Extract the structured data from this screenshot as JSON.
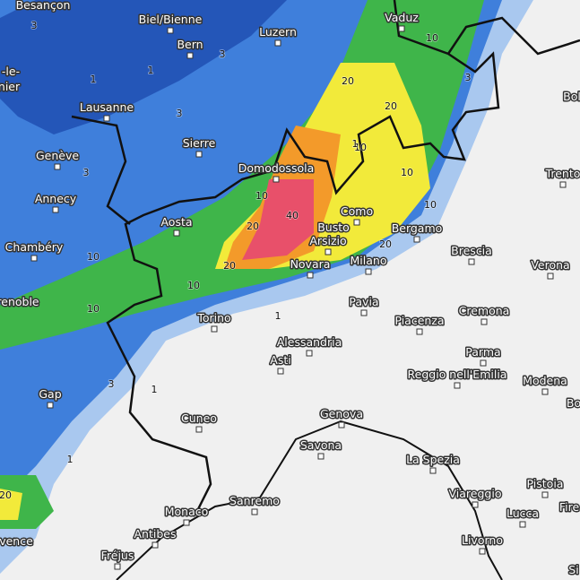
{
  "cities": [
    "Besançon",
    "Biel/Bienne",
    "Vaduz",
    "Bern",
    "Luzern",
    "-le-",
    "nier",
    "Lausanne",
    "Bol",
    "Sierre",
    "Genève",
    "Domodossola",
    "Trento",
    "Annecy",
    "Aosta",
    "Como",
    "Busto",
    "Arsizio",
    "Bergamo",
    "Chambéry",
    "Brescia",
    "Verona",
    "Novara",
    "Milano",
    "renoble",
    "Pavia",
    "Cremona",
    "Torino",
    "Piacenza",
    "Alessandria",
    "Parma",
    "Asti",
    "Reggio nell'Emilia",
    "Modena",
    "Bo",
    "Gap",
    "Cuneo",
    "Genova",
    "Savona",
    "La Spezia",
    "Pistoia",
    "Viareggio",
    "Sanremo",
    "Monaco",
    "Lucca",
    "Fire",
    "vence",
    "Antibes",
    "Livorno",
    "Fréjus",
    "Si"
  ],
  "contour_labels": [
    3,
    1,
    3,
    1,
    20,
    20,
    10,
    10,
    40,
    20,
    20,
    10,
    10,
    10,
    20,
    3,
    3,
    10,
    10,
    1,
    1,
    3,
    20,
    1,
    10,
    3,
    1
  ]
}
